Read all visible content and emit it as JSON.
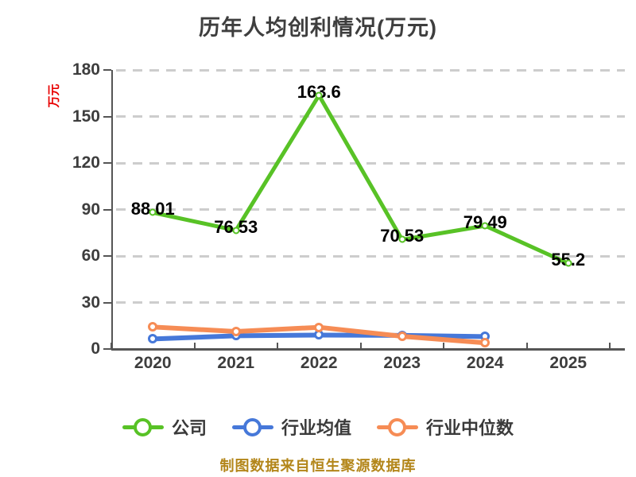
{
  "chart_data": {
    "type": "line",
    "title": "历年人均创利情况(万元)",
    "y_unit_label": "万元",
    "categories": [
      "2020",
      "2021",
      "2022",
      "2023",
      "2024",
      "2025"
    ],
    "yticks": [
      0,
      30,
      60,
      90,
      120,
      150,
      180
    ],
    "ylim": [
      0,
      180
    ],
    "grid": "horizontal-dashed",
    "legend_position": "bottom",
    "series": [
      {
        "slug": "company",
        "name": "公司",
        "color": "#58c226",
        "values": [
          88.01,
          76.53,
          163.6,
          70.53,
          79.49,
          55.2
        ],
        "labels": [
          "88.01",
          "76.53",
          "163.6",
          "70.53",
          "79.49",
          "55.2"
        ]
      },
      {
        "slug": "industry-mean",
        "name": "行业均值",
        "color": "#4678d9",
        "values": [
          6.5,
          8.5,
          9,
          8.8,
          8,
          null
        ],
        "labels": null
      },
      {
        "slug": "industry-median",
        "name": "行业中位数",
        "color": "#f68c55",
        "values": [
          14.2,
          11.3,
          14,
          8.2,
          4,
          null
        ],
        "labels": null
      }
    ],
    "colors": {
      "axis": "#555555",
      "grid": "#cdcdcd",
      "tick_label": "#3d3d3d",
      "data_label": "#000000",
      "title": "#3e3e3e",
      "unit_label": "#e80000",
      "legend_label": "#3a3a3a",
      "footer": "#b3861a"
    }
  },
  "footer": {
    "note": "制图数据来自恒生聚源数据库"
  }
}
